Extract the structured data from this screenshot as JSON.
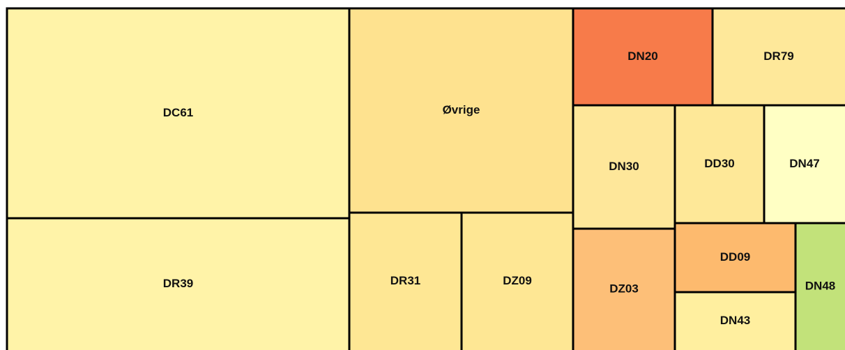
{
  "treemap": {
    "nodes": [
      {
        "label": "DC61",
        "color": "#fff3a8"
      },
      {
        "label": "DR39",
        "color": "#fff3a8"
      },
      {
        "label": "Øvrige",
        "color": "#fee28f"
      },
      {
        "label": "DR31",
        "color": "#fee794"
      },
      {
        "label": "DZ09",
        "color": "#fee794"
      },
      {
        "label": "DN20",
        "color": "#f77b4a"
      },
      {
        "label": "DR79",
        "color": "#fee89a"
      },
      {
        "label": "DN30",
        "color": "#fee79a"
      },
      {
        "label": "DD30",
        "color": "#fee898"
      },
      {
        "label": "DN47",
        "color": "#ffffc4"
      },
      {
        "label": "DZ03",
        "color": "#fdbf78"
      },
      {
        "label": "DD09",
        "color": "#fdba6e"
      },
      {
        "label": "DN43",
        "color": "#ffef9f"
      },
      {
        "label": "DN48",
        "color": "#c2e27a"
      }
    ]
  }
}
